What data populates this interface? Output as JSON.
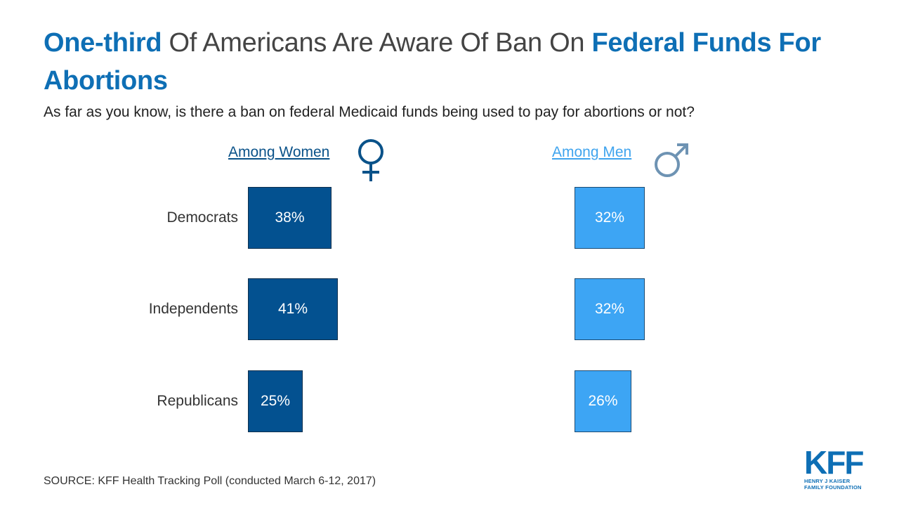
{
  "title": {
    "part1": "One-third",
    "part2": " Of Americans Are Aware Of Ban On ",
    "part3": "Federal Funds For Abortions"
  },
  "subtitle": "As far as you know, is there a ban on federal Medicaid funds being used to pay for abortions or not?",
  "colors": {
    "title_highlight": "#0e6fb5",
    "women_bar": "#035190",
    "men_bar": "#3da5f4",
    "women_label": "#0a5289",
    "men_label": "#3fa4ee"
  },
  "chart_data": {
    "type": "bar",
    "orientation": "horizontal",
    "categories": [
      "Democrats",
      "Independents",
      "Republicans"
    ],
    "series": [
      {
        "name": "Among Women",
        "values": [
          38,
          41,
          25
        ],
        "labels": [
          "38%",
          "41%",
          "25%"
        ],
        "icon": "female-symbol-icon"
      },
      {
        "name": "Among Men",
        "values": [
          32,
          32,
          26
        ],
        "labels": [
          "32%",
          "32%",
          "26%"
        ],
        "icon": "male-symbol-icon"
      }
    ],
    "unit": "%",
    "xlim": [
      0,
      100
    ],
    "grid": false
  },
  "source": "SOURCE: KFF Health Tracking Poll (conducted March 6-12, 2017)",
  "logo": {
    "mark": "KFF",
    "line1": "HENRY J KAISER",
    "line2": "FAMILY FOUNDATION"
  }
}
